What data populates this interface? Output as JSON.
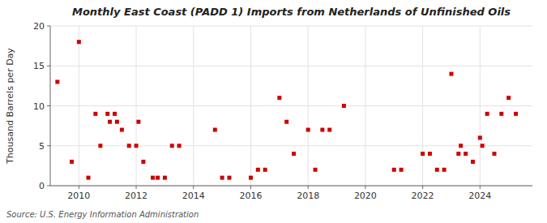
{
  "chart_data": {
    "type": "scatter",
    "title": "Monthly East Coast (PADD 1) Imports from Netherlands of Unfinished Oils",
    "ylabel": "Thousand Barrels per Day",
    "source": "Source: U.S. Energy Information Administration",
    "color": "#cc0000",
    "marker": "square",
    "grid": true,
    "xlim": [
      2009.0,
      2025.83
    ],
    "ylim": [
      0,
      20
    ],
    "xticks": [
      2010,
      2012,
      2014,
      2016,
      2018,
      2020,
      2022,
      2024
    ],
    "yticks": [
      0,
      5,
      10,
      15,
      20
    ],
    "x": [
      2009.25,
      2009.75,
      2010.0,
      2010.33,
      2010.58,
      2010.75,
      2011.0,
      2011.08,
      2011.25,
      2011.33,
      2011.5,
      2011.75,
      2012.0,
      2012.08,
      2012.25,
      2012.58,
      2012.75,
      2013.0,
      2013.25,
      2013.5,
      2014.75,
      2015.0,
      2015.25,
      2016.0,
      2016.25,
      2016.5,
      2017.0,
      2017.25,
      2017.5,
      2018.0,
      2018.25,
      2018.5,
      2018.75,
      2019.25,
      2021.0,
      2021.25,
      2022.0,
      2022.25,
      2022.5,
      2022.75,
      2023.0,
      2023.25,
      2023.33,
      2023.5,
      2023.75,
      2024.0,
      2024.08,
      2024.25,
      2024.5,
      2024.75,
      2025.0,
      2025.25
    ],
    "values": [
      13,
      3,
      18,
      1,
      9,
      5,
      9,
      8,
      9,
      8,
      7,
      5,
      5,
      8,
      3,
      1,
      1,
      1,
      5,
      5,
      7,
      1,
      1,
      1,
      2,
      2,
      11,
      8,
      4,
      7,
      2,
      7,
      7,
      10,
      2,
      2,
      4,
      4,
      2,
      2,
      14,
      4,
      5,
      4,
      3,
      6,
      5,
      9,
      4,
      9,
      11,
      9
    ]
  }
}
